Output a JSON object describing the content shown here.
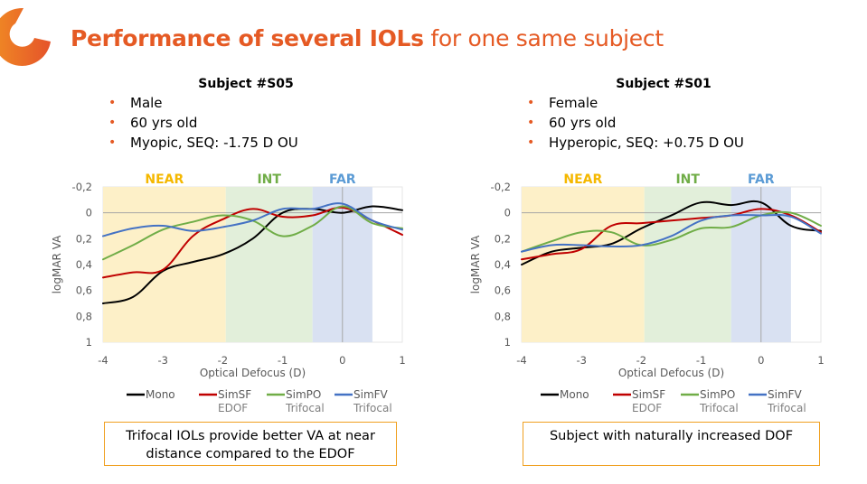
{
  "slide": {
    "title_bold": "Performance of several IOLs",
    "title_rest": " for one same subject",
    "accent_color": "#e55a24"
  },
  "panels": [
    {
      "subject": "Subject #S05",
      "bullets": [
        "Male",
        "60 yrs old",
        "Myopic, SEQ: -1.75 D OU"
      ],
      "note": "Trifocal IOLs provide better VA at near distance compared to the EDOF"
    },
    {
      "subject": "Subject #S01",
      "bullets": [
        "Female",
        "60 yrs old",
        "Hyperopic, SEQ: +0.75 D OU"
      ],
      "note": "Subject with naturally increased DOF"
    }
  ],
  "chart_data": [
    {
      "type": "line",
      "title": "Subject #S05",
      "xlabel": "Optical Defocus (D)",
      "ylabel": "logMAR VA",
      "xlim": [
        -4,
        1
      ],
      "ylim": [
        -0.2,
        1
      ],
      "y_inverted": true,
      "xticks": [
        "-4",
        "-3",
        "-2",
        "-1",
        "0",
        "1"
      ],
      "yticks": [
        "-0,2",
        "0",
        "0,2",
        "0,4",
        "0,6",
        "0,8",
        "1"
      ],
      "grid": false,
      "legend_position": "bottom",
      "zones": [
        {
          "label": "NEAR",
          "from": -4,
          "to": -1.95,
          "color": "#fdf0c8",
          "label_color": "#f5b800"
        },
        {
          "label": "INT",
          "from": -1.95,
          "to": -0.5,
          "color": "#e2efda",
          "label_color": "#70ad47"
        },
        {
          "label": "FAR",
          "from": -0.5,
          "to": 0.5,
          "color": "#d9e1f2",
          "label_color": "#5b9bd5"
        }
      ],
      "x": [
        -4,
        -3.5,
        -3,
        -2.5,
        -2,
        -1.5,
        -1,
        -0.5,
        0,
        0.5,
        1
      ],
      "series": [
        {
          "name": "Mono",
          "sub": "",
          "color": "#000000",
          "values": [
            0.7,
            0.65,
            0.45,
            0.38,
            0.32,
            0.2,
            0.0,
            -0.03,
            0.0,
            -0.05,
            -0.02
          ]
        },
        {
          "name": "SimSF",
          "sub": "EDOF",
          "color": "#c00000",
          "values": [
            0.5,
            0.46,
            0.44,
            0.18,
            0.05,
            -0.03,
            0.03,
            0.02,
            -0.04,
            0.06,
            0.17
          ]
        },
        {
          "name": "SimPO",
          "sub": "Trifocal",
          "color": "#70ad47",
          "values": [
            0.36,
            0.25,
            0.13,
            0.07,
            0.02,
            0.06,
            0.18,
            0.1,
            -0.05,
            0.08,
            0.12
          ]
        },
        {
          "name": "SimFV",
          "sub": "Trifocal",
          "color": "#4472c4",
          "values": [
            0.18,
            0.12,
            0.1,
            0.14,
            0.11,
            0.06,
            -0.03,
            -0.03,
            -0.07,
            0.06,
            0.13
          ]
        }
      ]
    },
    {
      "type": "line",
      "title": "Subject #S01",
      "xlabel": "Optical Defocus (D)",
      "ylabel": "logMAR VA",
      "xlim": [
        -4,
        1
      ],
      "ylim": [
        -0.2,
        1
      ],
      "y_inverted": true,
      "xticks": [
        "-4",
        "-3",
        "-2",
        "-1",
        "0",
        "1"
      ],
      "yticks": [
        "-0,2",
        "0",
        "0,2",
        "0,4",
        "0,6",
        "0,8",
        "1"
      ],
      "grid": false,
      "legend_position": "bottom",
      "zones": [
        {
          "label": "NEAR",
          "from": -4,
          "to": -1.95,
          "color": "#fdf0c8",
          "label_color": "#f5b800"
        },
        {
          "label": "INT",
          "from": -1.95,
          "to": -0.5,
          "color": "#e2efda",
          "label_color": "#70ad47"
        },
        {
          "label": "FAR",
          "from": -0.5,
          "to": 0.5,
          "color": "#d9e1f2",
          "label_color": "#5b9bd5"
        }
      ],
      "x": [
        -4,
        -3.5,
        -3,
        -2.5,
        -2,
        -1.5,
        -1,
        -0.5,
        0,
        0.5,
        1
      ],
      "series": [
        {
          "name": "Mono",
          "sub": "",
          "color": "#000000",
          "values": [
            0.4,
            0.3,
            0.27,
            0.24,
            0.12,
            0.02,
            -0.08,
            -0.06,
            -0.08,
            0.1,
            0.14
          ]
        },
        {
          "name": "SimSF",
          "sub": "EDOF",
          "color": "#c00000",
          "values": [
            0.36,
            0.32,
            0.28,
            0.1,
            0.08,
            0.06,
            0.04,
            0.02,
            -0.03,
            0.02,
            0.15
          ]
        },
        {
          "name": "SimPO",
          "sub": "Trifocal",
          "color": "#70ad47",
          "values": [
            0.3,
            0.22,
            0.15,
            0.15,
            0.25,
            0.21,
            0.12,
            0.11,
            0.02,
            0.0,
            0.1
          ]
        },
        {
          "name": "SimFV",
          "sub": "Trifocal",
          "color": "#4472c4",
          "values": [
            0.3,
            0.25,
            0.25,
            0.26,
            0.25,
            0.18,
            0.06,
            0.02,
            0.02,
            0.03,
            0.16
          ]
        }
      ]
    }
  ]
}
